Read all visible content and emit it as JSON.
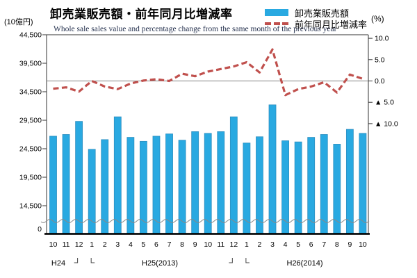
{
  "header": {
    "unit_left": "(10億円)",
    "title": "卸売業販売額・前年同月比増減率",
    "subtitle": "Whole sale sales value and percentage change  from the same month of the previous year",
    "unit_right": "(%)"
  },
  "legend": {
    "bar_label": "卸売業販売額",
    "line_label": "前年同月比増減率"
  },
  "colors": {
    "bar_fill": "#29A9E1",
    "bar_border": "#2E8FC0",
    "line": "#C0504D",
    "zero_line": "#808080",
    "axis": "#000000",
    "break_wave": "#888888",
    "bracket": "#444444"
  },
  "chart_data": {
    "type": "bar+line",
    "title": "卸売業販売額・前年同月比増減率",
    "subtitle": "Whole sale sales value and percentage change from the same month of the previous year",
    "months": [
      "10",
      "11",
      "12",
      "1",
      "2",
      "3",
      "4",
      "5",
      "6",
      "7",
      "8",
      "9",
      "10",
      "11",
      "12",
      "1",
      "2",
      "3",
      "4",
      "5",
      "6",
      "7",
      "8",
      "9",
      "10"
    ],
    "series": [
      {
        "name": "卸売業販売額",
        "type": "bar",
        "axis": "left",
        "unit": "10億円",
        "values": [
          26700,
          27000,
          29300,
          24400,
          26100,
          30100,
          26500,
          25800,
          26700,
          27100,
          26000,
          27500,
          27200,
          27500,
          30100,
          25500,
          26600,
          32200,
          25900,
          25700,
          26500,
          27000,
          25300,
          27900,
          27200
        ]
      },
      {
        "name": "前年同月比増減率",
        "type": "line",
        "axis": "right",
        "unit": "%",
        "values": [
          -1.8,
          -1.5,
          -2.5,
          0.0,
          -1.3,
          -1.9,
          -0.6,
          0.1,
          0.4,
          0.0,
          1.7,
          1.1,
          2.2,
          2.8,
          3.4,
          4.4,
          2.0,
          7.4,
          -3.3,
          -1.9,
          -1.3,
          -0.3,
          -2.7,
          1.5,
          0.5
        ]
      }
    ],
    "left_axis": {
      "tick_labels": [
        "44,500",
        "39,500",
        "34,500",
        "29,500",
        "24,500",
        "19,500",
        "14,500"
      ],
      "tick_values": [
        44500,
        39500,
        34500,
        29500,
        24500,
        19500,
        14500
      ],
      "zero_label": "0",
      "scale_break": true
    },
    "right_axis": {
      "tick_labels": [
        "10.0",
        "5.0",
        "0.0",
        "▲ 5.0",
        "▲ 10.0"
      ],
      "tick_values": [
        10,
        5,
        0,
        -5,
        -10
      ]
    },
    "year_groups": [
      {
        "label": "H24"
      },
      {
        "label": "H25(2013)"
      },
      {
        "label": "H26(2014)"
      }
    ],
    "legend_position": "top-right",
    "grid": "zero-line-only"
  }
}
